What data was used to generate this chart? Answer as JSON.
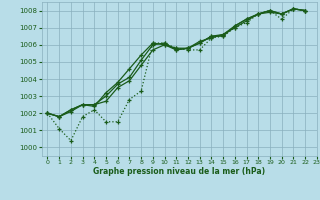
{
  "xlabel": "Graphe pression niveau de la mer (hPa)",
  "ylim": [
    999.5,
    1008.5
  ],
  "xlim": [
    -0.5,
    23
  ],
  "yticks": [
    1000,
    1001,
    1002,
    1003,
    1004,
    1005,
    1006,
    1007,
    1008
  ],
  "xticks": [
    0,
    1,
    2,
    3,
    4,
    5,
    6,
    7,
    8,
    9,
    10,
    11,
    12,
    13,
    14,
    15,
    16,
    17,
    18,
    19,
    20,
    21,
    22,
    23
  ],
  "bg_color": "#b8dde8",
  "grid_color": "#8ab0be",
  "line_color": "#1a5c1a",
  "series": [
    [
      1002.0,
      1001.1,
      1000.4,
      1001.8,
      1002.2,
      1001.5,
      1001.5,
      1002.8,
      1003.3,
      1006.1,
      1006.1,
      1005.8,
      1005.7,
      1005.7,
      1006.4,
      1006.5,
      1007.0,
      1007.3,
      1007.8,
      1008.0,
      1007.5,
      1008.1,
      1008.0
    ],
    [
      1002.0,
      1001.8,
      1002.1,
      1002.5,
      1002.4,
      1003.2,
      1003.8,
      1004.6,
      1005.4,
      1006.1,
      1006.0,
      1005.8,
      1005.8,
      1006.1,
      1006.5,
      1006.6,
      1007.1,
      1007.5,
      1007.8,
      1008.0,
      1007.8,
      1008.1,
      1008.0
    ],
    [
      1002.0,
      1001.8,
      1002.2,
      1002.5,
      1002.5,
      1002.7,
      1003.5,
      1003.9,
      1004.8,
      1005.7,
      1006.0,
      1005.7,
      1005.8,
      1006.2,
      1006.4,
      1006.6,
      1007.0,
      1007.4,
      1007.8,
      1008.0,
      1007.8,
      1008.1,
      1008.0
    ],
    [
      1002.0,
      1001.8,
      1002.2,
      1002.5,
      1002.5,
      1003.0,
      1003.7,
      1004.1,
      1005.1,
      1006.0,
      1006.1,
      1005.7,
      1005.8,
      1006.1,
      1006.5,
      1006.5,
      1007.1,
      1007.5,
      1007.8,
      1007.9,
      1007.8,
      1008.1,
      1008.0
    ]
  ],
  "series_styles": [
    {
      "linestyle": ":",
      "marker": "+",
      "linewidth": 0.9
    },
    {
      "linestyle": "-",
      "marker": "+",
      "linewidth": 0.9
    },
    {
      "linestyle": "-",
      "marker": "+",
      "linewidth": 0.9
    },
    {
      "linestyle": "-",
      "marker": "+",
      "linewidth": 0.9
    }
  ]
}
